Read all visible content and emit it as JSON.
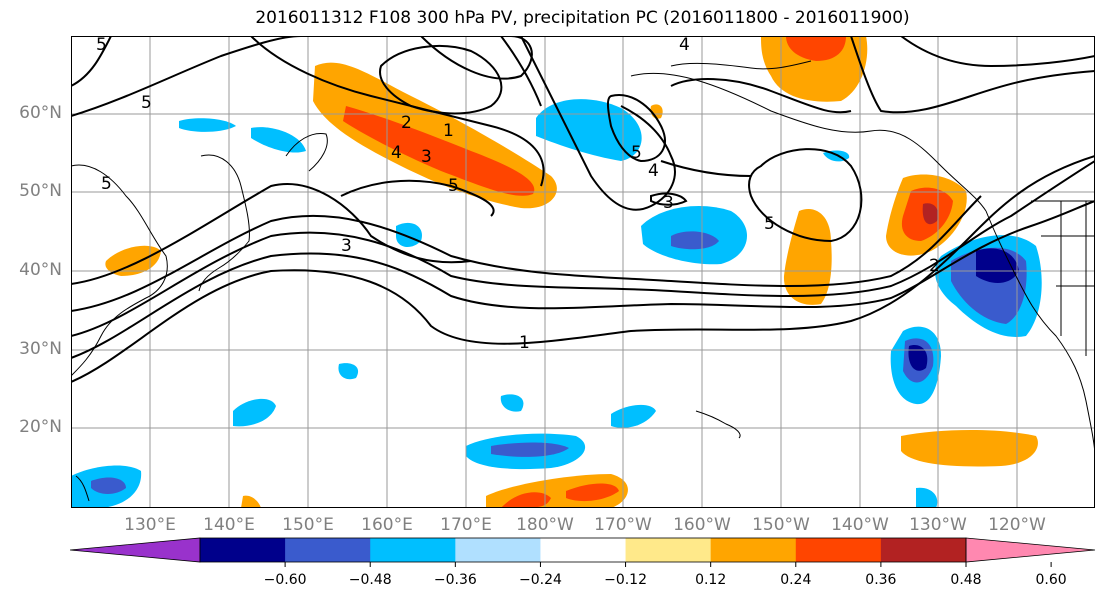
{
  "title": "2016011312 F108 300 hPa PV, precipitation PC (2016011800 - 2016011900)",
  "lat_labels": [
    "60°N",
    "50°N",
    "40°N",
    "30°N",
    "20°N"
  ],
  "lon_labels": [
    "130°E",
    "140°E",
    "150°E",
    "160°E",
    "170°E",
    "180°W",
    "170°W",
    "160°W",
    "150°W",
    "140°W",
    "130°W",
    "120°W"
  ],
  "colorbar": {
    "ticks": [
      "−0.60",
      "−0.48",
      "−0.36",
      "−0.24",
      "−0.12",
      "0.12",
      "0.24",
      "0.36",
      "0.48",
      "0.60"
    ],
    "colors": [
      "#9932cc",
      "#00008b",
      "#3a5bcd",
      "#00bfff",
      "#b0e0ff",
      "#ffffff",
      "#ffe98a",
      "#ffa500",
      "#ff4500",
      "#b22222",
      "#ff88b0"
    ]
  },
  "contour_labels": [
    "5",
    "5",
    "5",
    "4",
    "5",
    "4",
    "3",
    "5",
    "1",
    "2",
    "3",
    "4",
    "5",
    "3",
    "2",
    "1"
  ],
  "colors": {
    "contour": "#000000",
    "coast": "#000000",
    "grid": "#999999",
    "axis_label": "#808080"
  }
}
